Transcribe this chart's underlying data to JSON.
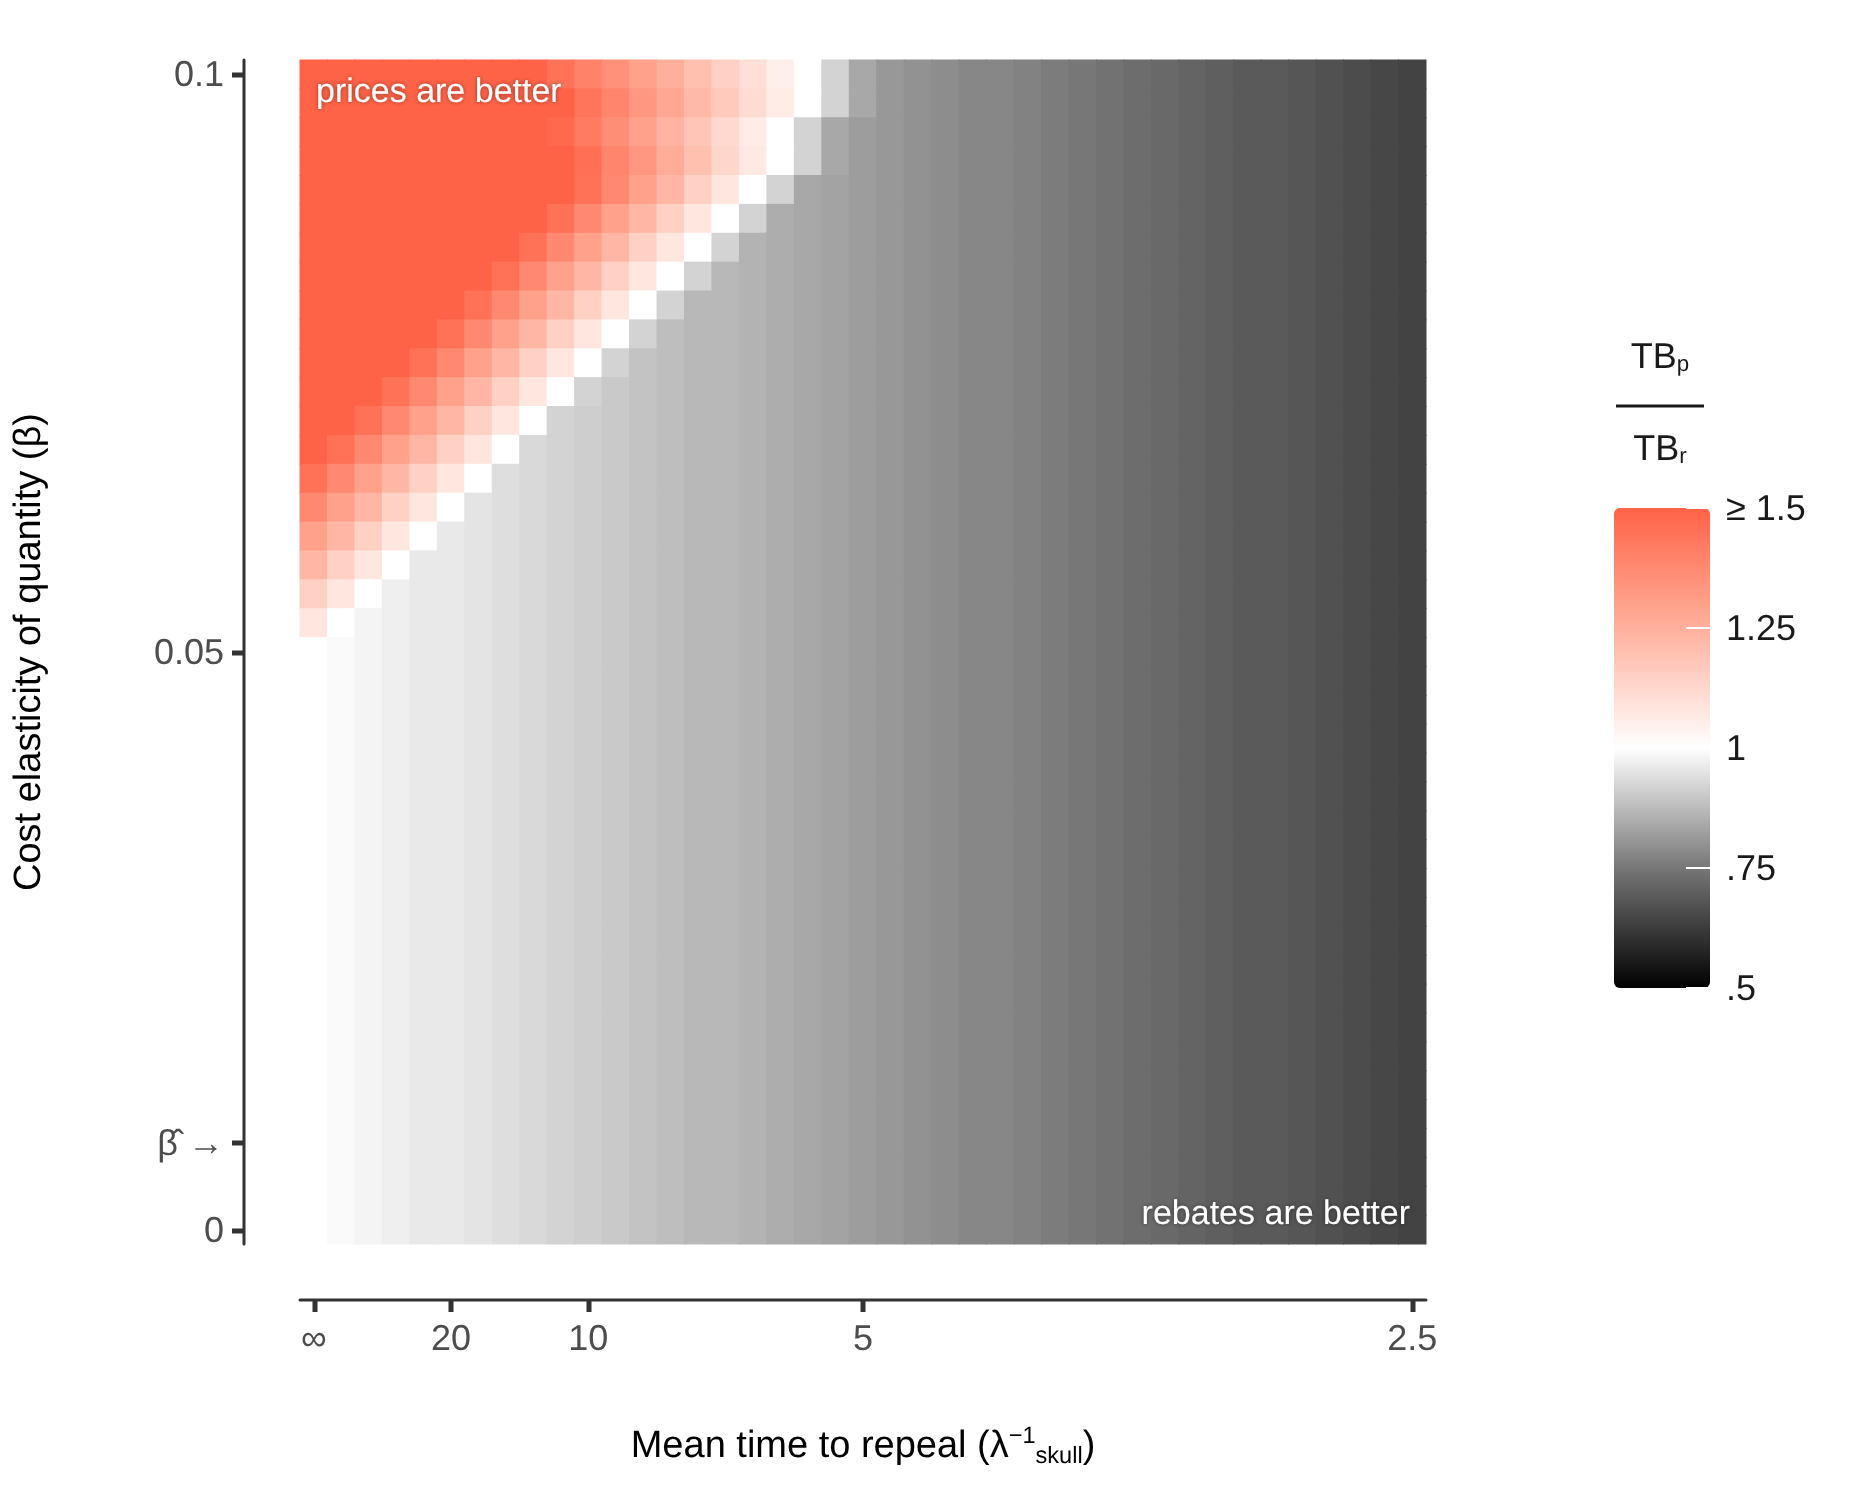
{
  "chart_data": {
    "type": "heatmap",
    "xlabel": "Mean time to repeal (λ$^{−1}$$_{skull}$)",
    "ylabel": "Cost elasticity of quantity (β)",
    "legend_title": "TB$_{p}$ TB$_{r}$",
    "annotations": [
      "prices are better",
      "rebates are better"
    ],
    "categories": [
      "∞",
      null,
      null,
      null,
      null,
      "20",
      null,
      null,
      null,
      null,
      "10",
      null,
      null,
      null,
      null,
      null,
      null,
      null,
      null,
      null,
      "5",
      null,
      null,
      null,
      null,
      null,
      null,
      null,
      null,
      null,
      null,
      null,
      null,
      null,
      null,
      null,
      null,
      null,
      null,
      null,
      "2.5"
    ],
    "y_categories": [
      "0.1",
      null,
      null,
      null,
      null,
      null,
      null,
      null,
      null,
      null,
      null,
      null,
      null,
      null,
      null,
      null,
      null,
      null,
      null,
      null,
      "0.05",
      null,
      null,
      null,
      null,
      null,
      null,
      null,
      null,
      null,
      null,
      null,
      null,
      null,
      null,
      null,
      null,
      "β̂ →",
      null,
      null,
      "0"
    ],
    "clim": [
      0.5,
      1.5
    ],
    "cticks": [
      {
        "value": 0.5,
        "label": ".5"
      },
      {
        "value": 0.75,
        "label": ".75"
      },
      1,
      1.25,
      {
        "value": 1.5,
        "label": "≥ 1.5"
      }
    ],
    "colors": [
      "#000000",
      "#777777",
      "#ffffff",
      "#ffb09c",
      "#ff6347"
    ],
    "cells": [
      [
        1.5,
        1.5,
        1.5,
        1.5,
        1.5,
        1.5,
        1.5,
        1.5,
        1.5,
        1.45,
        1.4,
        1.35,
        1.3,
        1.25,
        1.2,
        1.15,
        1.1,
        1.05,
        1,
        0.92,
        0.84,
        0.81,
        0.8,
        0.79,
        0.78,
        0.78,
        0.77,
        0.76,
        0.75,
        0.74,
        0.73,
        0.72,
        0.71,
        0.7,
        0.69,
        0.69,
        0.68,
        0.67,
        0.66,
        0.65,
        0.64
      ],
      [
        1.5,
        1.5,
        1.5,
        1.5,
        1.5,
        1.5,
        1.5,
        1.5,
        1.5,
        1.5,
        1.44,
        1.39,
        1.33,
        1.28,
        1.22,
        1.17,
        1.11,
        1.06,
        1,
        0.92,
        0.84,
        0.81,
        0.8,
        0.79,
        0.78,
        0.78,
        0.77,
        0.76,
        0.75,
        0.74,
        0.73,
        0.72,
        0.71,
        0.7,
        0.69,
        0.69,
        0.68,
        0.67,
        0.66,
        0.65,
        0.64
      ],
      [
        1.5,
        1.5,
        1.5,
        1.5,
        1.5,
        1.5,
        1.5,
        1.5,
        1.5,
        1.48,
        1.42,
        1.36,
        1.3,
        1.24,
        1.18,
        1.12,
        1.06,
        1,
        0.92,
        0.84,
        0.82,
        0.81,
        0.8,
        0.79,
        0.78,
        0.78,
        0.77,
        0.76,
        0.75,
        0.74,
        0.73,
        0.72,
        0.71,
        0.7,
        0.69,
        0.69,
        0.68,
        0.67,
        0.66,
        0.65,
        0.64
      ],
      [
        1.5,
        1.5,
        1.5,
        1.5,
        1.5,
        1.5,
        1.5,
        1.5,
        1.5,
        1.5,
        1.46,
        1.39,
        1.33,
        1.26,
        1.2,
        1.13,
        1.07,
        1,
        0.92,
        0.84,
        0.82,
        0.81,
        0.8,
        0.79,
        0.78,
        0.78,
        0.77,
        0.76,
        0.75,
        0.74,
        0.73,
        0.72,
        0.71,
        0.7,
        0.69,
        0.69,
        0.68,
        0.67,
        0.66,
        0.65,
        0.64
      ],
      [
        1.5,
        1.5,
        1.5,
        1.5,
        1.5,
        1.5,
        1.5,
        1.5,
        1.5,
        1.5,
        1.45,
        1.38,
        1.3,
        1.23,
        1.15,
        1.08,
        1,
        0.92,
        0.84,
        0.83,
        0.82,
        0.81,
        0.8,
        0.79,
        0.78,
        0.78,
        0.77,
        0.76,
        0.75,
        0.74,
        0.73,
        0.72,
        0.71,
        0.7,
        0.69,
        0.69,
        0.68,
        0.67,
        0.66,
        0.65,
        0.64
      ],
      [
        1.5,
        1.5,
        1.5,
        1.5,
        1.5,
        1.5,
        1.5,
        1.5,
        1.5,
        1.45,
        1.38,
        1.3,
        1.23,
        1.15,
        1.08,
        1,
        0.92,
        0.85,
        0.84,
        0.83,
        0.82,
        0.81,
        0.8,
        0.79,
        0.78,
        0.78,
        0.77,
        0.76,
        0.75,
        0.74,
        0.73,
        0.72,
        0.71,
        0.7,
        0.69,
        0.69,
        0.68,
        0.67,
        0.66,
        0.65,
        0.64
      ],
      [
        1.5,
        1.5,
        1.5,
        1.5,
        1.5,
        1.5,
        1.5,
        1.5,
        1.45,
        1.38,
        1.3,
        1.23,
        1.15,
        1.08,
        1,
        0.92,
        0.86,
        0.85,
        0.84,
        0.83,
        0.82,
        0.81,
        0.8,
        0.79,
        0.78,
        0.78,
        0.77,
        0.76,
        0.75,
        0.74,
        0.73,
        0.72,
        0.71,
        0.7,
        0.69,
        0.69,
        0.68,
        0.67,
        0.66,
        0.65,
        0.64
      ],
      [
        1.5,
        1.5,
        1.5,
        1.5,
        1.5,
        1.5,
        1.5,
        1.45,
        1.38,
        1.3,
        1.23,
        1.15,
        1.08,
        1,
        0.92,
        0.87,
        0.86,
        0.85,
        0.84,
        0.83,
        0.82,
        0.81,
        0.8,
        0.79,
        0.78,
        0.78,
        0.77,
        0.76,
        0.75,
        0.74,
        0.73,
        0.72,
        0.71,
        0.7,
        0.69,
        0.69,
        0.68,
        0.67,
        0.66,
        0.65,
        0.64
      ],
      [
        1.5,
        1.5,
        1.5,
        1.5,
        1.5,
        1.5,
        1.45,
        1.38,
        1.3,
        1.23,
        1.15,
        1.08,
        1,
        0.92,
        0.87,
        0.87,
        0.86,
        0.85,
        0.84,
        0.83,
        0.82,
        0.81,
        0.8,
        0.79,
        0.78,
        0.78,
        0.77,
        0.76,
        0.75,
        0.74,
        0.73,
        0.72,
        0.71,
        0.7,
        0.69,
        0.69,
        0.68,
        0.67,
        0.66,
        0.65,
        0.64
      ],
      [
        1.5,
        1.5,
        1.5,
        1.5,
        1.5,
        1.45,
        1.38,
        1.3,
        1.23,
        1.15,
        1.08,
        1,
        0.92,
        0.88,
        0.87,
        0.87,
        0.86,
        0.85,
        0.84,
        0.83,
        0.82,
        0.81,
        0.8,
        0.79,
        0.78,
        0.78,
        0.77,
        0.76,
        0.75,
        0.74,
        0.73,
        0.72,
        0.71,
        0.7,
        0.69,
        0.69,
        0.68,
        0.67,
        0.66,
        0.65,
        0.64
      ],
      [
        1.5,
        1.5,
        1.5,
        1.5,
        1.45,
        1.38,
        1.3,
        1.23,
        1.15,
        1.08,
        1,
        0.92,
        0.89,
        0.88,
        0.87,
        0.87,
        0.86,
        0.85,
        0.84,
        0.83,
        0.82,
        0.81,
        0.8,
        0.79,
        0.78,
        0.78,
        0.77,
        0.76,
        0.75,
        0.74,
        0.73,
        0.72,
        0.71,
        0.7,
        0.69,
        0.69,
        0.68,
        0.67,
        0.66,
        0.65,
        0.64
      ],
      [
        1.5,
        1.5,
        1.5,
        1.45,
        1.38,
        1.3,
        1.23,
        1.15,
        1.08,
        1,
        0.92,
        0.9,
        0.89,
        0.88,
        0.87,
        0.87,
        0.86,
        0.85,
        0.84,
        0.83,
        0.82,
        0.81,
        0.8,
        0.79,
        0.78,
        0.78,
        0.77,
        0.76,
        0.75,
        0.74,
        0.73,
        0.72,
        0.71,
        0.7,
        0.69,
        0.69,
        0.68,
        0.67,
        0.66,
        0.65,
        0.64
      ],
      [
        1.5,
        1.5,
        1.45,
        1.38,
        1.3,
        1.23,
        1.15,
        1.08,
        1,
        0.92,
        0.91,
        0.9,
        0.89,
        0.88,
        0.87,
        0.87,
        0.86,
        0.85,
        0.84,
        0.83,
        0.82,
        0.81,
        0.8,
        0.79,
        0.78,
        0.78,
        0.77,
        0.76,
        0.75,
        0.74,
        0.73,
        0.72,
        0.71,
        0.7,
        0.69,
        0.69,
        0.68,
        0.67,
        0.66,
        0.65,
        0.64
      ],
      [
        1.5,
        1.45,
        1.38,
        1.3,
        1.23,
        1.15,
        1.08,
        1,
        0.93,
        0.92,
        0.91,
        0.9,
        0.89,
        0.88,
        0.87,
        0.87,
        0.86,
        0.85,
        0.84,
        0.83,
        0.82,
        0.81,
        0.8,
        0.79,
        0.78,
        0.78,
        0.77,
        0.76,
        0.75,
        0.74,
        0.73,
        0.72,
        0.71,
        0.7,
        0.69,
        0.69,
        0.68,
        0.67,
        0.66,
        0.65,
        0.64
      ],
      [
        1.45,
        1.38,
        1.3,
        1.23,
        1.15,
        1.08,
        1,
        0.94,
        0.93,
        0.92,
        0.91,
        0.9,
        0.89,
        0.88,
        0.87,
        0.87,
        0.86,
        0.85,
        0.84,
        0.83,
        0.82,
        0.81,
        0.8,
        0.79,
        0.78,
        0.78,
        0.77,
        0.76,
        0.75,
        0.74,
        0.73,
        0.72,
        0.71,
        0.7,
        0.69,
        0.69,
        0.68,
        0.67,
        0.66,
        0.65,
        0.64
      ],
      [
        1.38,
        1.3,
        1.23,
        1.15,
        1.08,
        1,
        0.95,
        0.94,
        0.93,
        0.92,
        0.91,
        0.9,
        0.89,
        0.88,
        0.87,
        0.87,
        0.86,
        0.85,
        0.84,
        0.83,
        0.82,
        0.81,
        0.8,
        0.79,
        0.78,
        0.78,
        0.77,
        0.76,
        0.75,
        0.74,
        0.73,
        0.72,
        0.71,
        0.7,
        0.69,
        0.69,
        0.68,
        0.67,
        0.66,
        0.65,
        0.64
      ],
      [
        1.3,
        1.23,
        1.15,
        1.08,
        1,
        0.96,
        0.95,
        0.94,
        0.93,
        0.92,
        0.91,
        0.9,
        0.89,
        0.88,
        0.87,
        0.87,
        0.86,
        0.85,
        0.84,
        0.83,
        0.82,
        0.81,
        0.8,
        0.79,
        0.78,
        0.78,
        0.77,
        0.76,
        0.75,
        0.74,
        0.73,
        0.72,
        0.71,
        0.7,
        0.69,
        0.69,
        0.68,
        0.67,
        0.66,
        0.65,
        0.64
      ],
      [
        1.23,
        1.15,
        1.08,
        1,
        0.96,
        0.96,
        0.95,
        0.94,
        0.93,
        0.92,
        0.91,
        0.9,
        0.89,
        0.88,
        0.87,
        0.87,
        0.86,
        0.85,
        0.84,
        0.83,
        0.82,
        0.81,
        0.8,
        0.79,
        0.78,
        0.78,
        0.77,
        0.76,
        0.75,
        0.74,
        0.73,
        0.72,
        0.71,
        0.7,
        0.69,
        0.69,
        0.68,
        0.67,
        0.66,
        0.65,
        0.64
      ],
      [
        1.15,
        1.08,
        1,
        0.97,
        0.96,
        0.96,
        0.95,
        0.94,
        0.93,
        0.92,
        0.91,
        0.9,
        0.89,
        0.88,
        0.87,
        0.87,
        0.86,
        0.85,
        0.84,
        0.83,
        0.82,
        0.81,
        0.8,
        0.79,
        0.78,
        0.78,
        0.77,
        0.76,
        0.75,
        0.74,
        0.73,
        0.72,
        0.71,
        0.7,
        0.69,
        0.69,
        0.68,
        0.67,
        0.66,
        0.65,
        0.64
      ],
      [
        1.08,
        1,
        0.98,
        0.97,
        0.96,
        0.96,
        0.95,
        0.94,
        0.93,
        0.92,
        0.91,
        0.9,
        0.89,
        0.88,
        0.87,
        0.87,
        0.86,
        0.85,
        0.84,
        0.83,
        0.82,
        0.81,
        0.8,
        0.79,
        0.78,
        0.78,
        0.77,
        0.76,
        0.75,
        0.74,
        0.73,
        0.72,
        0.71,
        0.7,
        0.69,
        0.69,
        0.68,
        0.67,
        0.66,
        0.65,
        0.64
      ],
      [
        1,
        0.99,
        0.98,
        0.97,
        0.96,
        0.96,
        0.95,
        0.94,
        0.93,
        0.92,
        0.91,
        0.9,
        0.89,
        0.88,
        0.87,
        0.87,
        0.86,
        0.85,
        0.84,
        0.83,
        0.82,
        0.81,
        0.8,
        0.79,
        0.78,
        0.78,
        0.77,
        0.76,
        0.75,
        0.74,
        0.73,
        0.72,
        0.71,
        0.7,
        0.69,
        0.69,
        0.68,
        0.67,
        0.66,
        0.65,
        0.64
      ],
      [
        1,
        0.99,
        0.98,
        0.97,
        0.96,
        0.96,
        0.95,
        0.94,
        0.93,
        0.92,
        0.91,
        0.9,
        0.89,
        0.88,
        0.87,
        0.87,
        0.86,
        0.85,
        0.84,
        0.83,
        0.82,
        0.81,
        0.8,
        0.79,
        0.78,
        0.78,
        0.77,
        0.76,
        0.75,
        0.74,
        0.73,
        0.72,
        0.71,
        0.7,
        0.69,
        0.69,
        0.68,
        0.67,
        0.66,
        0.65,
        0.64
      ],
      [
        1,
        0.99,
        0.98,
        0.97,
        0.96,
        0.96,
        0.95,
        0.94,
        0.93,
        0.92,
        0.91,
        0.9,
        0.89,
        0.88,
        0.87,
        0.87,
        0.86,
        0.85,
        0.84,
        0.83,
        0.82,
        0.81,
        0.8,
        0.79,
        0.78,
        0.78,
        0.77,
        0.76,
        0.75,
        0.74,
        0.73,
        0.72,
        0.71,
        0.7,
        0.69,
        0.69,
        0.68,
        0.67,
        0.66,
        0.65,
        0.64
      ],
      [
        1,
        0.99,
        0.98,
        0.97,
        0.96,
        0.96,
        0.95,
        0.94,
        0.93,
        0.92,
        0.91,
        0.9,
        0.89,
        0.88,
        0.87,
        0.87,
        0.86,
        0.85,
        0.84,
        0.83,
        0.82,
        0.81,
        0.8,
        0.79,
        0.78,
        0.78,
        0.77,
        0.76,
        0.75,
        0.74,
        0.73,
        0.72,
        0.71,
        0.7,
        0.69,
        0.69,
        0.68,
        0.67,
        0.66,
        0.65,
        0.64
      ],
      [
        1,
        0.99,
        0.98,
        0.97,
        0.96,
        0.96,
        0.95,
        0.94,
        0.93,
        0.92,
        0.91,
        0.9,
        0.89,
        0.88,
        0.87,
        0.87,
        0.86,
        0.85,
        0.84,
        0.83,
        0.82,
        0.81,
        0.8,
        0.79,
        0.78,
        0.78,
        0.77,
        0.76,
        0.75,
        0.74,
        0.73,
        0.72,
        0.71,
        0.7,
        0.69,
        0.69,
        0.68,
        0.67,
        0.66,
        0.65,
        0.64
      ],
      [
        1,
        0.99,
        0.98,
        0.97,
        0.96,
        0.96,
        0.95,
        0.94,
        0.93,
        0.92,
        0.91,
        0.9,
        0.89,
        0.88,
        0.87,
        0.87,
        0.86,
        0.85,
        0.84,
        0.83,
        0.82,
        0.81,
        0.8,
        0.79,
        0.78,
        0.78,
        0.77,
        0.76,
        0.75,
        0.74,
        0.73,
        0.72,
        0.71,
        0.7,
        0.69,
        0.69,
        0.68,
        0.67,
        0.66,
        0.65,
        0.64
      ],
      [
        1,
        0.99,
        0.98,
        0.97,
        0.96,
        0.96,
        0.95,
        0.94,
        0.93,
        0.92,
        0.91,
        0.9,
        0.89,
        0.88,
        0.87,
        0.87,
        0.86,
        0.85,
        0.84,
        0.83,
        0.82,
        0.81,
        0.8,
        0.79,
        0.78,
        0.78,
        0.77,
        0.76,
        0.75,
        0.74,
        0.73,
        0.72,
        0.71,
        0.7,
        0.69,
        0.69,
        0.68,
        0.67,
        0.66,
        0.65,
        0.64
      ],
      [
        1,
        0.99,
        0.98,
        0.97,
        0.96,
        0.96,
        0.95,
        0.94,
        0.93,
        0.92,
        0.91,
        0.9,
        0.89,
        0.88,
        0.87,
        0.87,
        0.86,
        0.85,
        0.84,
        0.83,
        0.82,
        0.81,
        0.8,
        0.79,
        0.78,
        0.78,
        0.77,
        0.76,
        0.75,
        0.74,
        0.73,
        0.72,
        0.71,
        0.7,
        0.69,
        0.69,
        0.68,
        0.67,
        0.66,
        0.65,
        0.64
      ],
      [
        1,
        0.99,
        0.98,
        0.97,
        0.96,
        0.96,
        0.95,
        0.94,
        0.93,
        0.92,
        0.91,
        0.9,
        0.89,
        0.88,
        0.87,
        0.87,
        0.86,
        0.85,
        0.84,
        0.83,
        0.82,
        0.81,
        0.8,
        0.79,
        0.78,
        0.78,
        0.77,
        0.76,
        0.75,
        0.74,
        0.73,
        0.72,
        0.71,
        0.7,
        0.69,
        0.69,
        0.68,
        0.67,
        0.66,
        0.65,
        0.64
      ],
      [
        1,
        0.99,
        0.98,
        0.97,
        0.96,
        0.96,
        0.95,
        0.94,
        0.93,
        0.92,
        0.91,
        0.9,
        0.89,
        0.88,
        0.87,
        0.87,
        0.86,
        0.85,
        0.84,
        0.83,
        0.82,
        0.81,
        0.8,
        0.79,
        0.78,
        0.78,
        0.77,
        0.76,
        0.75,
        0.74,
        0.73,
        0.72,
        0.71,
        0.7,
        0.69,
        0.69,
        0.68,
        0.67,
        0.66,
        0.65,
        0.64
      ],
      [
        1,
        0.99,
        0.98,
        0.97,
        0.96,
        0.96,
        0.95,
        0.94,
        0.93,
        0.92,
        0.91,
        0.9,
        0.89,
        0.88,
        0.87,
        0.87,
        0.86,
        0.85,
        0.84,
        0.83,
        0.82,
        0.81,
        0.8,
        0.79,
        0.78,
        0.78,
        0.77,
        0.76,
        0.75,
        0.74,
        0.73,
        0.72,
        0.71,
        0.7,
        0.69,
        0.69,
        0.68,
        0.67,
        0.66,
        0.65,
        0.64
      ],
      [
        1,
        0.99,
        0.98,
        0.97,
        0.96,
        0.96,
        0.95,
        0.94,
        0.93,
        0.92,
        0.91,
        0.9,
        0.89,
        0.88,
        0.87,
        0.87,
        0.86,
        0.85,
        0.84,
        0.83,
        0.82,
        0.81,
        0.8,
        0.79,
        0.78,
        0.78,
        0.77,
        0.76,
        0.75,
        0.74,
        0.73,
        0.72,
        0.71,
        0.7,
        0.69,
        0.69,
        0.68,
        0.67,
        0.66,
        0.65,
        0.64
      ],
      [
        1,
        0.99,
        0.98,
        0.97,
        0.96,
        0.96,
        0.95,
        0.94,
        0.93,
        0.92,
        0.91,
        0.9,
        0.89,
        0.88,
        0.87,
        0.87,
        0.86,
        0.85,
        0.84,
        0.83,
        0.82,
        0.81,
        0.8,
        0.79,
        0.78,
        0.78,
        0.77,
        0.76,
        0.75,
        0.74,
        0.73,
        0.72,
        0.71,
        0.7,
        0.69,
        0.69,
        0.68,
        0.67,
        0.66,
        0.65,
        0.64
      ],
      [
        1,
        0.99,
        0.98,
        0.97,
        0.96,
        0.96,
        0.95,
        0.94,
        0.93,
        0.92,
        0.91,
        0.9,
        0.89,
        0.88,
        0.87,
        0.87,
        0.86,
        0.85,
        0.84,
        0.83,
        0.82,
        0.81,
        0.8,
        0.79,
        0.78,
        0.78,
        0.77,
        0.76,
        0.75,
        0.74,
        0.73,
        0.72,
        0.71,
        0.7,
        0.69,
        0.69,
        0.68,
        0.67,
        0.66,
        0.65,
        0.64
      ],
      [
        1,
        0.99,
        0.98,
        0.97,
        0.96,
        0.96,
        0.95,
        0.94,
        0.93,
        0.92,
        0.91,
        0.9,
        0.89,
        0.88,
        0.87,
        0.87,
        0.86,
        0.85,
        0.84,
        0.83,
        0.82,
        0.81,
        0.8,
        0.79,
        0.78,
        0.78,
        0.77,
        0.76,
        0.75,
        0.74,
        0.73,
        0.72,
        0.71,
        0.7,
        0.69,
        0.69,
        0.68,
        0.67,
        0.66,
        0.65,
        0.64
      ],
      [
        1,
        0.99,
        0.98,
        0.97,
        0.96,
        0.96,
        0.95,
        0.94,
        0.93,
        0.92,
        0.91,
        0.9,
        0.89,
        0.88,
        0.87,
        0.87,
        0.86,
        0.85,
        0.84,
        0.83,
        0.82,
        0.81,
        0.8,
        0.79,
        0.78,
        0.78,
        0.77,
        0.76,
        0.75,
        0.74,
        0.73,
        0.72,
        0.71,
        0.7,
        0.69,
        0.69,
        0.68,
        0.67,
        0.66,
        0.65,
        0.64
      ],
      [
        1,
        0.99,
        0.98,
        0.97,
        0.96,
        0.96,
        0.95,
        0.94,
        0.93,
        0.92,
        0.91,
        0.9,
        0.89,
        0.88,
        0.87,
        0.87,
        0.86,
        0.85,
        0.84,
        0.83,
        0.82,
        0.81,
        0.8,
        0.79,
        0.78,
        0.78,
        0.77,
        0.76,
        0.75,
        0.74,
        0.73,
        0.72,
        0.71,
        0.7,
        0.69,
        0.69,
        0.68,
        0.67,
        0.66,
        0.65,
        0.64
      ],
      [
        1,
        0.99,
        0.98,
        0.97,
        0.96,
        0.96,
        0.95,
        0.94,
        0.93,
        0.92,
        0.91,
        0.9,
        0.89,
        0.88,
        0.87,
        0.87,
        0.86,
        0.85,
        0.84,
        0.83,
        0.82,
        0.81,
        0.8,
        0.79,
        0.78,
        0.78,
        0.77,
        0.76,
        0.75,
        0.74,
        0.73,
        0.72,
        0.71,
        0.7,
        0.69,
        0.69,
        0.68,
        0.67,
        0.66,
        0.65,
        0.64
      ],
      [
        1,
        0.99,
        0.98,
        0.97,
        0.96,
        0.96,
        0.95,
        0.94,
        0.93,
        0.92,
        0.91,
        0.9,
        0.89,
        0.88,
        0.87,
        0.87,
        0.86,
        0.85,
        0.84,
        0.83,
        0.82,
        0.81,
        0.8,
        0.79,
        0.78,
        0.78,
        0.77,
        0.76,
        0.75,
        0.74,
        0.73,
        0.72,
        0.71,
        0.7,
        0.69,
        0.69,
        0.68,
        0.67,
        0.66,
        0.65,
        0.64
      ],
      [
        1,
        0.99,
        0.98,
        0.97,
        0.96,
        0.96,
        0.95,
        0.94,
        0.93,
        0.92,
        0.91,
        0.9,
        0.89,
        0.88,
        0.87,
        0.87,
        0.86,
        0.85,
        0.84,
        0.83,
        0.82,
        0.81,
        0.8,
        0.79,
        0.78,
        0.78,
        0.77,
        0.76,
        0.75,
        0.74,
        0.73,
        0.72,
        0.71,
        0.7,
        0.69,
        0.69,
        0.68,
        0.67,
        0.66,
        0.65,
        0.64
      ],
      [
        1,
        0.99,
        0.98,
        0.97,
        0.96,
        0.96,
        0.95,
        0.94,
        0.93,
        0.92,
        0.91,
        0.9,
        0.89,
        0.88,
        0.87,
        0.87,
        0.86,
        0.85,
        0.84,
        0.83,
        0.82,
        0.81,
        0.8,
        0.79,
        0.78,
        0.78,
        0.77,
        0.76,
        0.75,
        0.74,
        0.73,
        0.72,
        0.71,
        0.7,
        0.69,
        0.69,
        0.68,
        0.67,
        0.66,
        0.65,
        0.64
      ]
    ]
  }
}
